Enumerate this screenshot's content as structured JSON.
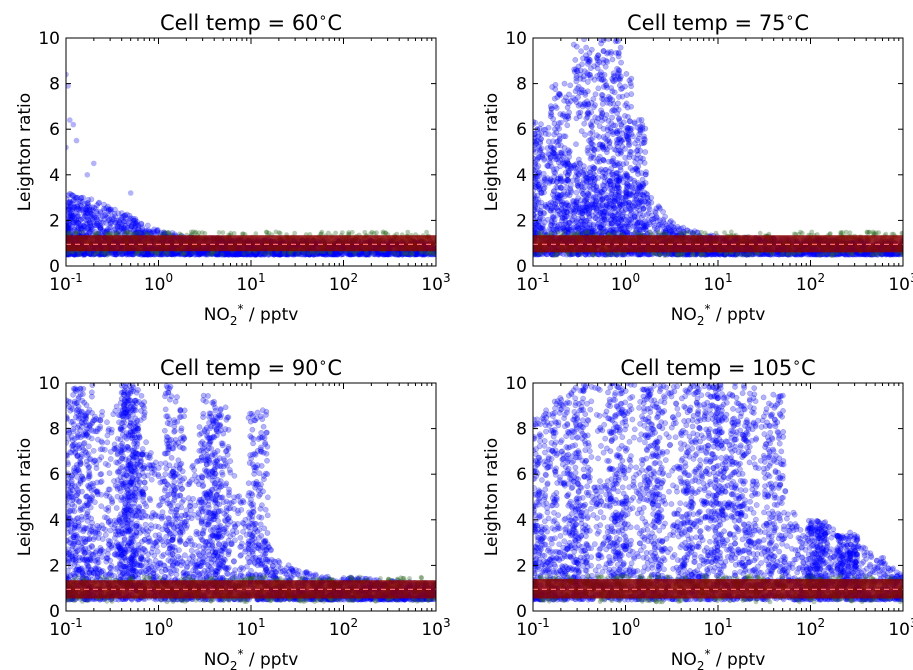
{
  "figure": {
    "background": "#ffffff"
  },
  "colors": {
    "blue_points": "#0000ff",
    "green_points": "#2e6b1f",
    "red_band": "#8b0000",
    "median_line": "#ff6666",
    "axes": "#000000"
  },
  "chart_data": [
    {
      "type": "scatter",
      "title": "Cell temp = 60$^\\circ$C",
      "title_parts": {
        "prefix": "Cell temp = 60",
        "degree": "∘",
        "suffix": "C"
      },
      "xlabel_parts": {
        "base": "NO",
        "sub": "2",
        "sup": "*",
        "unit": " / pptv"
      },
      "ylabel": "Leighton ratio",
      "xscale": "log",
      "xlim": [
        0.1,
        1000
      ],
      "ylim": [
        0,
        10
      ],
      "xticks": [
        {
          "base": "10",
          "exp": "-1"
        },
        {
          "base": "10",
          "exp": "0"
        },
        {
          "base": "10",
          "exp": "1"
        },
        {
          "base": "10",
          "exp": "2"
        },
        {
          "base": "10",
          "exp": "3"
        }
      ],
      "yticks": [
        "0",
        "2",
        "4",
        "6",
        "8",
        "10"
      ],
      "band": {
        "lower": 0.65,
        "upper": 1.35,
        "median": 0.95
      },
      "blue_envelope": [
        [
          0.1,
          3.2
        ],
        [
          0.15,
          3.1
        ],
        [
          0.2,
          2.9
        ],
        [
          0.3,
          2.6
        ],
        [
          0.5,
          2.2
        ],
        [
          1,
          1.6
        ],
        [
          2,
          1.3
        ],
        [
          5,
          1.2
        ],
        [
          10,
          1.15
        ],
        [
          100,
          1.15
        ],
        [
          1000,
          1.1
        ]
      ],
      "outliers": [
        [
          0.1,
          8.4
        ],
        [
          0.105,
          7.9
        ],
        [
          0.11,
          6.4
        ],
        [
          0.12,
          6.2
        ],
        [
          0.13,
          5.5
        ],
        [
          0.1,
          5.2
        ],
        [
          0.17,
          4.0
        ],
        [
          0.2,
          4.5
        ],
        [
          0.5,
          3.2
        ]
      ]
    },
    {
      "type": "scatter",
      "title": "Cell temp = 75$^\\circ$C",
      "title_parts": {
        "prefix": "Cell temp = 75",
        "degree": "∘",
        "suffix": "C"
      },
      "xlabel_parts": {
        "base": "NO",
        "sub": "2",
        "sup": "*",
        "unit": " / pptv"
      },
      "ylabel": "Leighton ratio",
      "xscale": "log",
      "xlim": [
        0.1,
        1000
      ],
      "ylim": [
        0,
        10
      ],
      "xticks": [
        {
          "base": "10",
          "exp": "-1"
        },
        {
          "base": "10",
          "exp": "0"
        },
        {
          "base": "10",
          "exp": "1"
        },
        {
          "base": "10",
          "exp": "2"
        },
        {
          "base": "10",
          "exp": "3"
        }
      ],
      "yticks": [
        "0",
        "2",
        "4",
        "6",
        "8",
        "10"
      ],
      "band": {
        "lower": 0.6,
        "upper": 1.35,
        "median": 0.95
      },
      "blue_envelope": [
        [
          0.1,
          6.5
        ],
        [
          0.15,
          6.2
        ],
        [
          0.2,
          5.2
        ],
        [
          0.3,
          4.4
        ],
        [
          0.5,
          4.0
        ],
        [
          1,
          4.2
        ],
        [
          2,
          3.0
        ],
        [
          3,
          2.0
        ],
        [
          5,
          1.6
        ],
        [
          10,
          1.3
        ],
        [
          100,
          1.2
        ],
        [
          1000,
          1.1
        ]
      ],
      "streaks": [
        {
          "x": 0.35,
          "ymax": 10
        },
        {
          "x": 0.5,
          "ymax": 9.5
        },
        {
          "x": 0.7,
          "ymax": 10
        },
        {
          "x": 0.9,
          "ymax": 8.5
        },
        {
          "x": 1.3,
          "ymax": 6.5
        },
        {
          "x": 0.2,
          "ymax": 8.0
        }
      ]
    },
    {
      "type": "scatter",
      "title": "Cell temp = 90$^\\circ$C",
      "title_parts": {
        "prefix": "Cell temp = 90",
        "degree": "∘",
        "suffix": "C"
      },
      "xlabel_parts": {
        "base": "NO",
        "sub": "2",
        "sup": "*",
        "unit": " / pptv"
      },
      "ylabel": "Leighton ratio",
      "xscale": "log",
      "xlim": [
        0.1,
        1000
      ],
      "ylim": [
        0,
        10
      ],
      "xticks": [
        {
          "base": "10",
          "exp": "-1"
        },
        {
          "base": "10",
          "exp": "0"
        },
        {
          "base": "10",
          "exp": "1"
        },
        {
          "base": "10",
          "exp": "2"
        },
        {
          "base": "10",
          "exp": "3"
        }
      ],
      "yticks": [
        "0",
        "2",
        "4",
        "6",
        "8",
        "10"
      ],
      "band": {
        "lower": 0.55,
        "upper": 1.35,
        "median": 0.95
      },
      "blue_envelope": [
        [
          0.1,
          9.5
        ],
        [
          0.2,
          9.0
        ],
        [
          0.3,
          8.5
        ],
        [
          0.45,
          10
        ],
        [
          0.6,
          8.0
        ],
        [
          1,
          6.5
        ],
        [
          2,
          6.0
        ],
        [
          4,
          8.5
        ],
        [
          7,
          6.0
        ],
        [
          12,
          4.0
        ],
        [
          20,
          2.2
        ],
        [
          50,
          1.6
        ],
        [
          100,
          1.5
        ],
        [
          1000,
          1.2
        ]
      ],
      "streaks": [
        {
          "x": 0.45,
          "ymax": 10
        },
        {
          "x": 0.5,
          "ymax": 10
        },
        {
          "x": 0.55,
          "ymax": 10
        },
        {
          "x": 1.5,
          "ymax": 10
        },
        {
          "x": 3.5,
          "ymax": 9.5
        },
        {
          "x": 4.5,
          "ymax": 9.0
        },
        {
          "x": 12,
          "ymax": 9.0
        },
        {
          "x": 0.15,
          "ymax": 10
        }
      ]
    },
    {
      "type": "scatter",
      "title": "Cell temp = 105$^\\circ$C",
      "title_parts": {
        "prefix": "Cell temp = 105",
        "degree": "∘",
        "suffix": "C"
      },
      "xlabel_parts": {
        "base": "NO",
        "sub": "2",
        "sup": "*",
        "unit": " / pptv"
      },
      "ylabel": "Leighton ratio",
      "xscale": "log",
      "xlim": [
        0.1,
        1000
      ],
      "ylim": [
        0,
        10
      ],
      "xticks": [
        {
          "base": "10",
          "exp": "-1"
        },
        {
          "base": "10",
          "exp": "0"
        },
        {
          "base": "10",
          "exp": "1"
        },
        {
          "base": "10",
          "exp": "2"
        },
        {
          "base": "10",
          "exp": "3"
        }
      ],
      "yticks": [
        "0",
        "2",
        "4",
        "6",
        "8",
        "10"
      ],
      "band": {
        "lower": 0.55,
        "upper": 1.4,
        "median": 0.95
      },
      "blue_envelope": [
        [
          0.1,
          8.5
        ],
        [
          0.2,
          9.5
        ],
        [
          0.4,
          10
        ],
        [
          1,
          10
        ],
        [
          3,
          10
        ],
        [
          8,
          10
        ],
        [
          15,
          9.0
        ],
        [
          30,
          9.5
        ],
        [
          60,
          4.5
        ],
        [
          150,
          3.8
        ],
        [
          300,
          3.0
        ],
        [
          600,
          2.4
        ],
        [
          1000,
          1.5
        ]
      ],
      "streaks": [
        {
          "x": 0.3,
          "ymax": 10
        },
        {
          "x": 0.8,
          "ymax": 10
        },
        {
          "x": 2,
          "ymax": 10
        },
        {
          "x": 5,
          "ymax": 10
        },
        {
          "x": 9,
          "ymax": 10
        },
        {
          "x": 12,
          "ymax": 10
        },
        {
          "x": 20,
          "ymax": 10
        },
        {
          "x": 40,
          "ymax": 9.5
        },
        {
          "x": 120,
          "ymax": 4.0
        },
        {
          "x": 250,
          "ymax": 3.5
        }
      ]
    }
  ]
}
